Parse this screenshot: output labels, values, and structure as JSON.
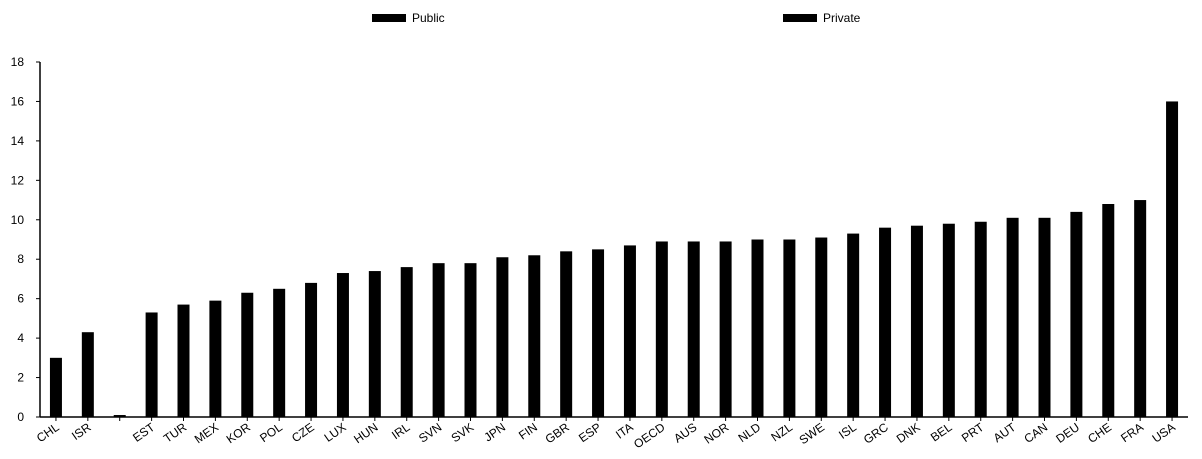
{
  "chart_data": {
    "type": "bar",
    "title": "",
    "xlabel": "",
    "ylabel": "",
    "ylim": [
      0,
      18
    ],
    "yticks": [
      0,
      2,
      4,
      6,
      8,
      10,
      12,
      14,
      16,
      18
    ],
    "legend": {
      "placement": "top",
      "entries": [
        "Public",
        "Private"
      ]
    },
    "categories": [
      "CHL",
      "ISR",
      "",
      "EST",
      "TUR",
      "MEX",
      "KOR",
      "POL",
      "CZE",
      "LUX",
      "HUN",
      "IRL",
      "SVN",
      "SVK",
      "JPN",
      "FIN",
      "GBR",
      "ESP",
      "ITA",
      "OECD",
      "AUS",
      "NOR",
      "NLD",
      "NZL",
      "SWE",
      "ISL",
      "GRC",
      "DNK",
      "BEL",
      "PRT",
      "AUT",
      "CAN",
      "DEU",
      "CHE",
      "FRA",
      "USA"
    ],
    "series": [
      {
        "name": "Public",
        "values": [
          3.0,
          4.3,
          0.1,
          5.3,
          5.7,
          5.9,
          6.3,
          6.5,
          6.8,
          7.3,
          7.4,
          7.6,
          7.8,
          7.8,
          8.1,
          8.2,
          8.4,
          8.5,
          8.7,
          8.9,
          8.9,
          8.9,
          9.0,
          9.0,
          9.1,
          9.3,
          9.6,
          9.7,
          9.8,
          9.9,
          10.1,
          10.1,
          10.4,
          10.8,
          11.0,
          16.0
        ]
      }
    ],
    "grid": false,
    "colors": {
      "bar": "#000000",
      "axis": "#000000"
    }
  }
}
